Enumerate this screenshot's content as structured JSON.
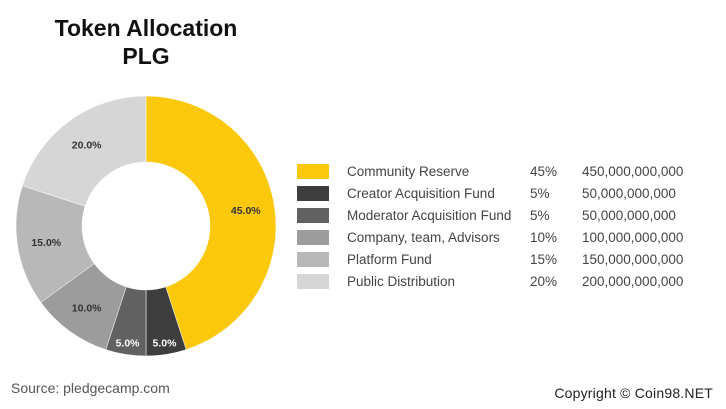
{
  "chart_data": {
    "type": "pie",
    "title": "Token Allocation",
    "subtitle": "PLG",
    "categories": [
      "Community Reserve",
      "Creator Acquisition Fund",
      "Moderator Acquisition Fund",
      "Company, team, Advisors",
      "Platform Fund",
      "Public Distribution"
    ],
    "values": [
      45,
      5,
      5,
      10,
      15,
      20
    ],
    "slice_labels": [
      "45.0%",
      "5.0%",
      "5.0%",
      "10.0%",
      "15.0%",
      "20.0%"
    ],
    "colors": [
      "#fcc80c",
      "#3d3d3d",
      "#616161",
      "#9c9c9c",
      "#b8b8b8",
      "#d6d6d6"
    ],
    "donut": true,
    "legend": [
      {
        "name": "Community Reserve",
        "percent": "45%",
        "amount": "450,000,000,000"
      },
      {
        "name": "Creator Acquisition Fund",
        "percent": "5%",
        "amount": "50,000,000,000"
      },
      {
        "name": "Moderator Acquisition Fund",
        "percent": "5%",
        "amount": "50,000,000,000"
      },
      {
        "name": "Company, team, Advisors",
        "percent": "10%",
        "amount": "100,000,000,000"
      },
      {
        "name": "Platform Fund",
        "percent": "15%",
        "amount": "150,000,000,000"
      },
      {
        "name": "Public Distribution",
        "percent": "20%",
        "amount": "200,000,000,000"
      }
    ],
    "legend_position": "right"
  },
  "footer": {
    "source": "Source: pledgecamp.com",
    "copyright": "Copyright © Coin98.NET"
  }
}
